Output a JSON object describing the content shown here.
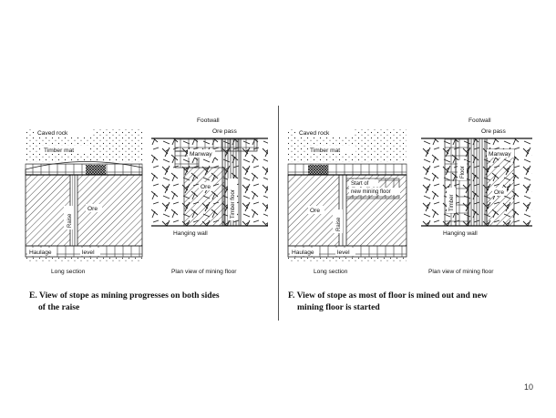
{
  "slide_number": "10",
  "panel_e": {
    "caption_line1": "E. View of stope as mining progresses on both sides",
    "caption_line2": "of the raise",
    "long_section": {
      "caved_rock": "Caved rock",
      "timber_mat": "Timber mat",
      "raise": "Raise",
      "ore": "Ore",
      "haulage": "Haulage",
      "level": "level",
      "title": "Long section"
    },
    "plan_view": {
      "footwall": "Footwall",
      "ore_pass": "Ore pass",
      "manway": "Manway",
      "ore": "Ore",
      "timber_floor": "Timber floor",
      "hanging_wall": "Hanging wall",
      "title": "Plan view of mining floor"
    }
  },
  "panel_f": {
    "caption_line1": "F. View of stope as most of floor is mined out and new",
    "caption_line2": "mining floor is started",
    "long_section": {
      "caved_rock": "Caved rock",
      "timber_mat": "Timber mat",
      "start_line1": "Start of",
      "start_line2": "new mining floor",
      "raise": "Raise",
      "ore": "Ore",
      "haulage": "Haulage",
      "level": "level",
      "title": "Long section"
    },
    "plan_view": {
      "footwall": "Footwall",
      "ore_pass": "Ore pass",
      "floor": "Floor",
      "timber": "Timber",
      "manway": "Manway",
      "ore": "Ore",
      "hanging_wall": "Hanging wall",
      "title": "Plan view of mining floor"
    }
  }
}
